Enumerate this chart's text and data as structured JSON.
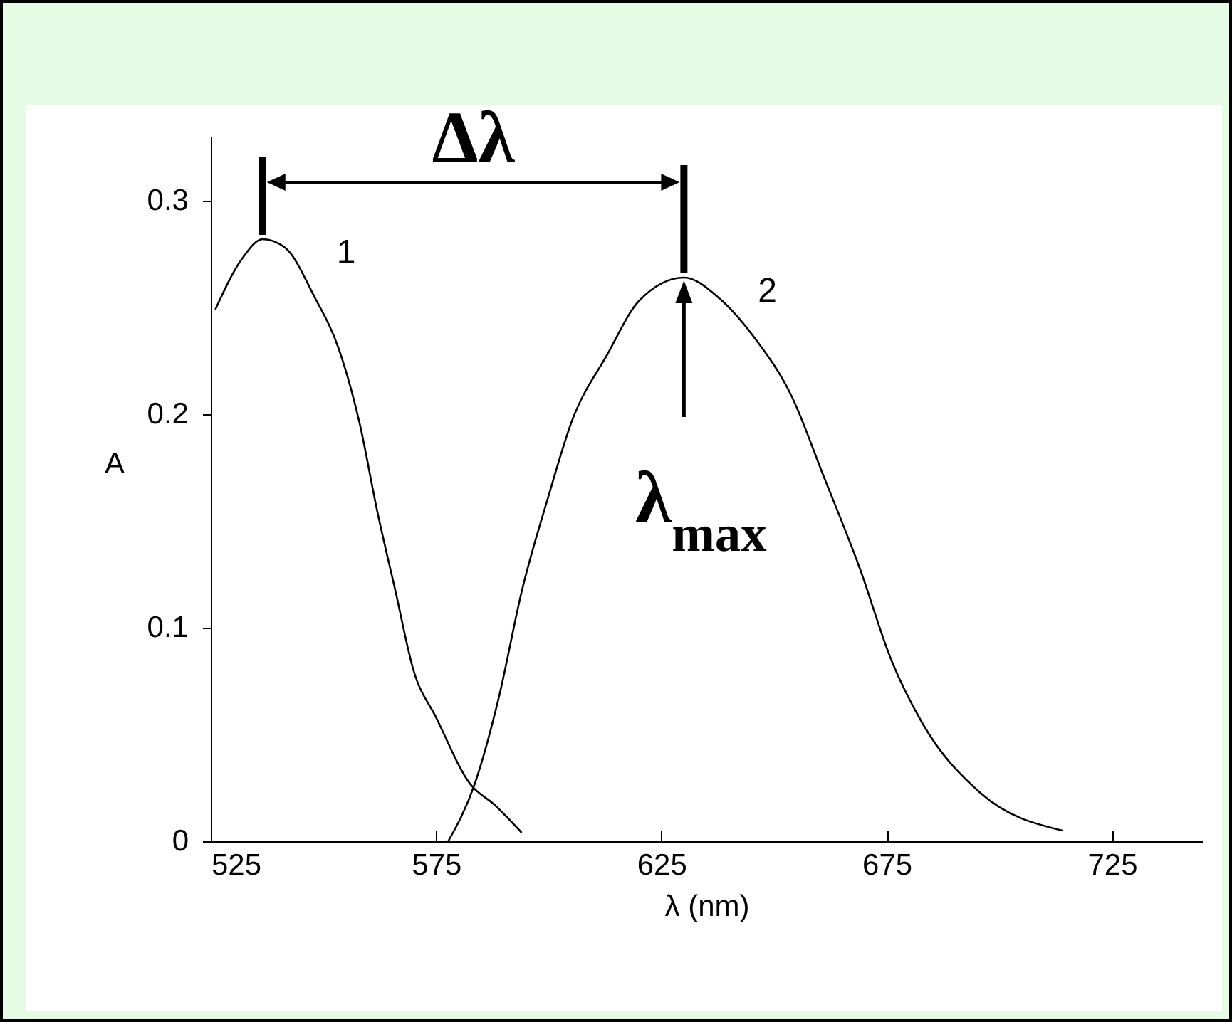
{
  "chart_data": {
    "type": "line",
    "xlabel": "λ (nm)",
    "ylabel": "A",
    "xlim": [
      525,
      745
    ],
    "xticks": [
      525,
      575,
      625,
      675,
      725
    ],
    "ylim": [
      0,
      0.33
    ],
    "yticks": [
      0,
      0.1,
      0.2,
      0.3
    ],
    "line_style": "solid",
    "series": [
      {
        "name": "1",
        "color": "#000000",
        "x": [
          526,
          532,
          536.5,
          541.5,
          548,
          553.5,
          558,
          562,
          566,
          570,
          575,
          582.5,
          588,
          594
        ],
        "values": [
          0.249,
          0.273,
          0.282,
          0.278,
          0.255,
          0.23,
          0.196,
          0.154,
          0.117,
          0.08,
          0.058,
          0.027,
          0.017,
          0.004
        ]
      },
      {
        "name": "2",
        "color": "#000000",
        "x": [
          577.7,
          583.6,
          589,
          594,
          600,
          605,
          613,
          620,
          630,
          638,
          645.6,
          654,
          661,
          669,
          676,
          683,
          695.6,
          714
        ],
        "values": [
          0,
          0.027,
          0.068,
          0.117,
          0.162,
          0.196,
          0.228,
          0.253,
          0.264,
          0.254,
          0.236,
          0.208,
          0.171,
          0.128,
          0.085,
          0.055,
          0.023,
          0.005
        ]
      }
    ],
    "annotations": [
      "Δλ",
      {
        "text": "λ$_{max}$",
        "x": 630,
        "y": 0.264
      }
    ]
  }
}
